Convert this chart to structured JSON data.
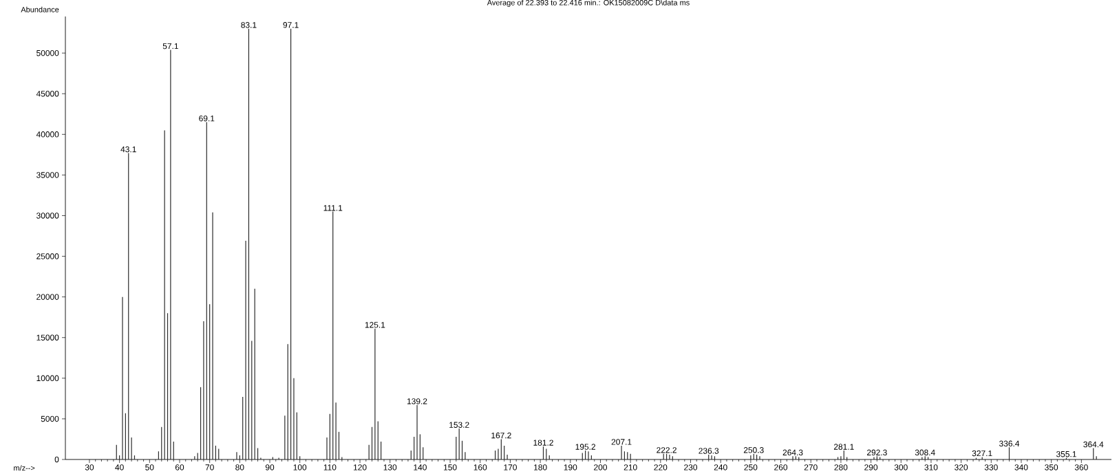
{
  "chart_data": {
    "type": "bar",
    "title": "Average of 22.393 to 22.416 min.: OK15082009C D\\data ms",
    "xlabel": "m/z-->",
    "ylabel": "Abundance",
    "x": [
      39,
      40,
      41,
      42,
      43,
      44,
      45,
      53,
      54,
      55,
      56,
      57,
      58,
      65,
      66,
      67,
      68,
      69,
      70,
      71,
      72,
      73,
      79,
      80,
      81,
      82,
      83,
      84,
      85,
      86,
      87,
      91,
      93,
      95,
      96,
      97,
      98,
      99,
      100,
      109,
      110,
      111,
      112,
      113,
      114,
      123,
      124,
      125,
      126,
      127,
      137,
      138,
      139,
      140,
      141,
      152,
      153,
      154,
      155,
      165,
      166,
      167,
      168,
      169,
      181,
      182,
      183,
      194,
      195,
      196,
      197,
      207,
      208,
      209,
      210,
      221,
      222,
      223,
      224,
      236,
      237,
      238,
      250,
      251,
      252,
      253,
      264,
      265,
      266,
      279,
      280,
      281,
      282,
      291,
      292,
      293,
      307,
      308,
      309,
      325,
      327,
      336,
      355,
      364,
      365
    ],
    "values": [
      1800,
      500,
      20000,
      5700,
      37700,
      2700,
      500,
      1000,
      4000,
      40500,
      18000,
      50400,
      2200,
      400,
      800,
      8900,
      17000,
      41500,
      19100,
      30400,
      1700,
      1300,
      900,
      500,
      7700,
      26900,
      53000,
      14600,
      21000,
      1400,
      200,
      300,
      200,
      5400,
      14200,
      53000,
      10000,
      5800,
      400,
      2700,
      5600,
      30500,
      7000,
      3400,
      300,
      1800,
      4000,
      16100,
      4700,
      2200,
      1100,
      2800,
      6700,
      3100,
      1500,
      2800,
      3800,
      2300,
      900,
      1100,
      1300,
      2500,
      1700,
      600,
      1600,
      1300,
      500,
      800,
      1100,
      1000,
      500,
      1700,
      1000,
      900,
      700,
      700,
      700,
      600,
      400,
      600,
      500,
      400,
      500,
      700,
      600,
      400,
      400,
      400,
      300,
      300,
      400,
      1100,
      300,
      300,
      400,
      300,
      300,
      400,
      300,
      200,
      300,
      1500,
      200,
      1400,
      400
    ],
    "color": "#2b2b2b",
    "xlim": [
      22,
      370
    ],
    "ylim": [
      0,
      54500
    ],
    "xticks": [
      30,
      40,
      50,
      60,
      70,
      80,
      90,
      100,
      110,
      120,
      130,
      140,
      150,
      160,
      170,
      180,
      190,
      200,
      210,
      220,
      230,
      240,
      250,
      260,
      270,
      280,
      290,
      300,
      310,
      320,
      330,
      340,
      350,
      360
    ],
    "yticks": [
      0,
      5000,
      10000,
      15000,
      20000,
      25000,
      30000,
      35000,
      40000,
      45000,
      50000
    ],
    "annotations": [
      {
        "text": "43.1",
        "x": 43,
        "y": 37700
      },
      {
        "text": "57.1",
        "x": 57,
        "y": 50400
      },
      {
        "text": "69.1",
        "x": 69,
        "y": 41500
      },
      {
        "text": "83.1",
        "x": 83,
        "y": 53000
      },
      {
        "text": "97.1",
        "x": 97,
        "y": 53000
      },
      {
        "text": "111.1",
        "x": 111,
        "y": 30500
      },
      {
        "text": "125.1",
        "x": 125,
        "y": 16100
      },
      {
        "text": "139.2",
        "x": 139,
        "y": 6700
      },
      {
        "text": "153.2",
        "x": 153,
        "y": 3800
      },
      {
        "text": "167.2",
        "x": 167,
        "y": 2500
      },
      {
        "text": "181.2",
        "x": 181,
        "y": 1600
      },
      {
        "text": "195.2",
        "x": 195,
        "y": 1100
      },
      {
        "text": "207.1",
        "x": 207,
        "y": 1700
      },
      {
        "text": "222.2",
        "x": 222,
        "y": 700
      },
      {
        "text": "236.3",
        "x": 236,
        "y": 600
      },
      {
        "text": "250.3",
        "x": 251,
        "y": 700
      },
      {
        "text": "264.3",
        "x": 264,
        "y": 400
      },
      {
        "text": "281.1",
        "x": 281,
        "y": 1100
      },
      {
        "text": "292.3",
        "x": 292,
        "y": 400
      },
      {
        "text": "308.4",
        "x": 308,
        "y": 400
      },
      {
        "text": "327.1",
        "x": 327,
        "y": 300
      },
      {
        "text": "336.4",
        "x": 336,
        "y": 1500
      },
      {
        "text": "355.1",
        "x": 355,
        "y": 200
      },
      {
        "text": "364.4",
        "x": 364,
        "y": 1400
      }
    ]
  }
}
